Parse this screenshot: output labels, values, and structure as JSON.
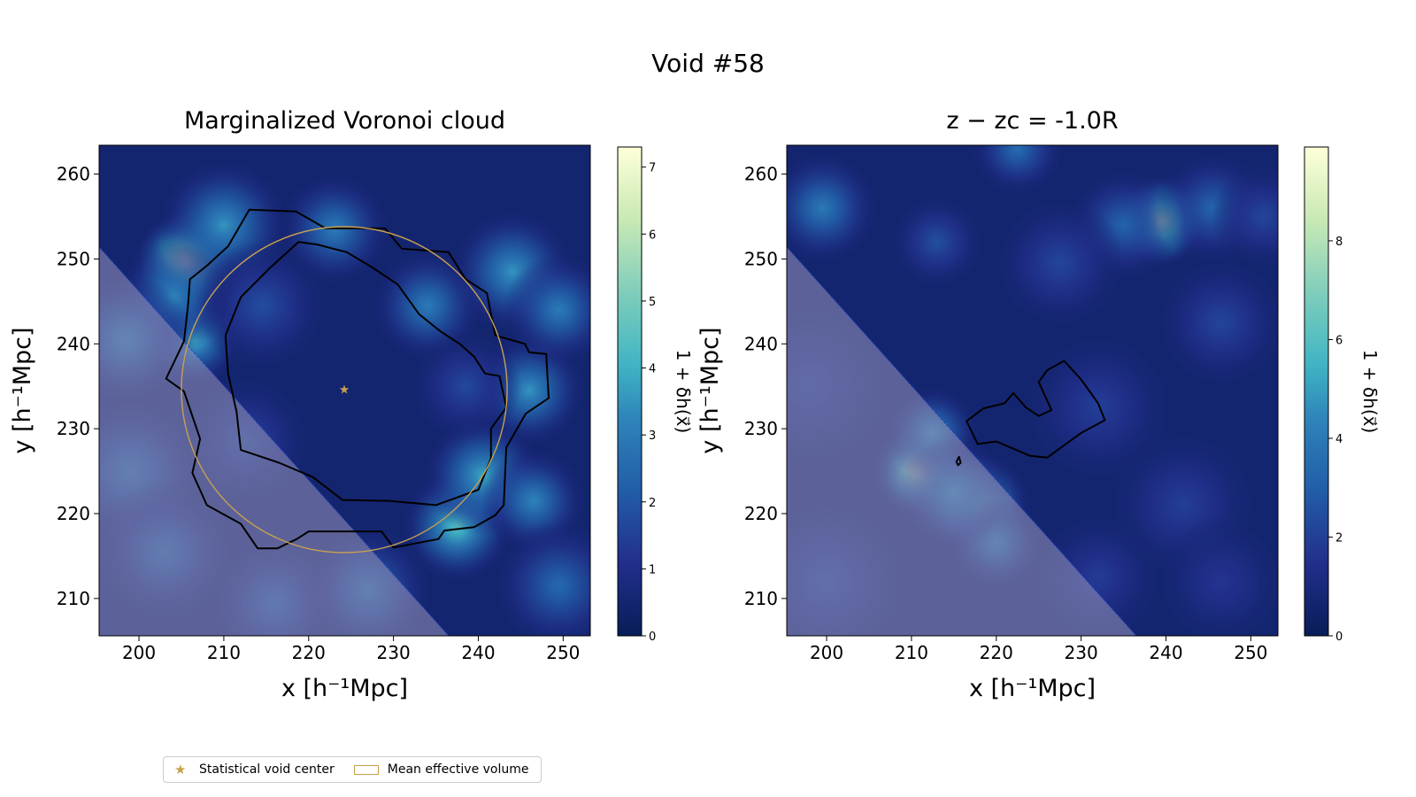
{
  "figure_title": "Void #58",
  "legend": {
    "center_label": "Statistical void center",
    "volume_label": "Mean effective volume"
  },
  "colors": {
    "dark": "#081d58",
    "mid": "#2c7fb8",
    "light": "#c7e9b4",
    "pale": "#ffffd9",
    "circle": "#c8a050",
    "mask": "#8c8cb4",
    "contour": "#000000"
  },
  "chart_data": [
    {
      "type": "heatmap",
      "title": "Marginalized Voronoi cloud",
      "xlabel": "x [h⁻¹Mpc]",
      "ylabel": "y [h⁻¹Mpc]",
      "xlim": [
        195.3,
        253.2
      ],
      "ylim": [
        205.6,
        263.4
      ],
      "xticks": [
        200,
        210,
        220,
        230,
        240,
        250
      ],
      "yticks": [
        210,
        220,
        230,
        240,
        250,
        260
      ],
      "colorbar": {
        "label": "1 + δh(x⃗)",
        "min": 0,
        "max": 7.3,
        "ticks": [
          0,
          1,
          2,
          3,
          4,
          5,
          6,
          7
        ]
      },
      "void_center": [
        224.2,
        234.6
      ],
      "effective_radius": 19.2,
      "blobs": [
        {
          "x": 205.5,
          "y": 249.5,
          "value": 6.8,
          "sigma": 2.8
        },
        {
          "x": 210.0,
          "y": 254.0,
          "value": 3.5,
          "sigma": 3.5
        },
        {
          "x": 206.5,
          "y": 240.5,
          "value": 4.0,
          "sigma": 2.5
        },
        {
          "x": 204.0,
          "y": 245.5,
          "value": 3.2,
          "sigma": 3.0
        },
        {
          "x": 237.5,
          "y": 218.5,
          "value": 4.5,
          "sigma": 3.0
        },
        {
          "x": 240.5,
          "y": 224.5,
          "value": 3.8,
          "sigma": 3.2
        },
        {
          "x": 246.5,
          "y": 221.5,
          "value": 3.2,
          "sigma": 2.8
        },
        {
          "x": 246.0,
          "y": 234.5,
          "value": 3.5,
          "sigma": 3.0
        },
        {
          "x": 244.0,
          "y": 248.5,
          "value": 3.5,
          "sigma": 3.3
        },
        {
          "x": 249.5,
          "y": 244.0,
          "value": 3.0,
          "sigma": 3.0
        },
        {
          "x": 234.0,
          "y": 244.5,
          "value": 3.0,
          "sigma": 3.0
        },
        {
          "x": 223.0,
          "y": 253.5,
          "value": 3.0,
          "sigma": 3.0
        },
        {
          "x": 198.5,
          "y": 240.5,
          "value": 3.0,
          "sigma": 3.5
        },
        {
          "x": 199.0,
          "y": 225.0,
          "value": 2.6,
          "sigma": 4.0
        },
        {
          "x": 203.0,
          "y": 215.5,
          "value": 2.4,
          "sigma": 3.8
        },
        {
          "x": 216.0,
          "y": 209.5,
          "value": 2.2,
          "sigma": 3.5
        },
        {
          "x": 227.0,
          "y": 211.0,
          "value": 2.6,
          "sigma": 3.5
        },
        {
          "x": 249.5,
          "y": 211.5,
          "value": 2.5,
          "sigma": 3.5
        },
        {
          "x": 214.5,
          "y": 244.5,
          "value": 1.8,
          "sigma": 3.5
        },
        {
          "x": 212.5,
          "y": 228.5,
          "value": 1.7,
          "sigma": 3.5
        },
        {
          "x": 238.5,
          "y": 235.0,
          "value": 1.7,
          "sigma": 3.0
        }
      ],
      "contours": [
        [
          [
            213.0,
            255.8
          ],
          [
            218.5,
            255.6
          ],
          [
            222.0,
            253.6
          ],
          [
            229.0,
            253.6
          ],
          [
            231.0,
            251.2
          ],
          [
            236.5,
            250.8
          ],
          [
            238.5,
            247.6
          ],
          [
            241.0,
            246.0
          ],
          [
            242.0,
            241.0
          ],
          [
            245.5,
            240.0
          ],
          [
            246.0,
            239.0
          ],
          [
            248.0,
            238.8
          ],
          [
            248.3,
            233.6
          ],
          [
            245.6,
            231.8
          ],
          [
            243.3,
            227.8
          ],
          [
            243.0,
            221.0
          ],
          [
            242.0,
            219.8
          ],
          [
            239.5,
            218.4
          ],
          [
            236.0,
            218.0
          ],
          [
            235.3,
            217.0
          ],
          [
            230.0,
            216.0
          ],
          [
            228.6,
            217.9
          ],
          [
            224.0,
            217.9
          ],
          [
            220.0,
            217.9
          ],
          [
            218.6,
            217.0
          ],
          [
            216.3,
            215.9
          ],
          [
            214.0,
            215.9
          ],
          [
            212.0,
            218.8
          ],
          [
            208.0,
            221.0
          ],
          [
            206.3,
            224.8
          ],
          [
            207.2,
            228.8
          ],
          [
            205.3,
            234.4
          ],
          [
            203.2,
            235.9
          ],
          [
            205.3,
            240.3
          ],
          [
            205.8,
            244.7
          ],
          [
            206.0,
            247.6
          ],
          [
            208.0,
            249.2
          ],
          [
            210.5,
            251.5
          ],
          [
            213.0,
            255.8
          ]
        ],
        [
          [
            218.8,
            252.0
          ],
          [
            221.0,
            251.7
          ],
          [
            224.5,
            250.8
          ],
          [
            227.5,
            249.0
          ],
          [
            230.5,
            247.0
          ],
          [
            233.0,
            243.5
          ],
          [
            235.5,
            241.5
          ],
          [
            237.8,
            240.0
          ],
          [
            239.5,
            238.5
          ],
          [
            240.8,
            236.5
          ],
          [
            242.5,
            236.2
          ],
          [
            243.3,
            232.5
          ],
          [
            241.5,
            230.0
          ],
          [
            241.5,
            226.5
          ],
          [
            240.0,
            222.8
          ],
          [
            235.0,
            221.0
          ],
          [
            229.5,
            221.5
          ],
          [
            224.0,
            221.6
          ],
          [
            220.5,
            224.3
          ],
          [
            216.5,
            226.0
          ],
          [
            212.0,
            227.5
          ],
          [
            211.5,
            232.0
          ],
          [
            210.5,
            236.5
          ],
          [
            210.2,
            241.0
          ],
          [
            212.0,
            245.5
          ],
          [
            215.5,
            249.0
          ],
          [
            218.8,
            252.0
          ]
        ]
      ]
    },
    {
      "type": "heatmap",
      "title": "z − zc = -1.0R",
      "xlabel": "x [h⁻¹Mpc]",
      "ylabel": "y [h⁻¹Mpc]",
      "xlim": [
        195.3,
        253.2
      ],
      "ylim": [
        205.6,
        263.4
      ],
      "xticks": [
        200,
        210,
        220,
        230,
        240,
        250
      ],
      "yticks": [
        210,
        220,
        230,
        240,
        250,
        260
      ],
      "colorbar": {
        "label": "1 + δh(x⃗)",
        "min": 0,
        "max": 9.9,
        "ticks": [
          0,
          2,
          4,
          6,
          8
        ]
      },
      "blobs": [
        {
          "x": 211.0,
          "y": 225.0,
          "value": 9.0,
          "sigma": 2.5
        },
        {
          "x": 218.0,
          "y": 221.0,
          "value": 6.0,
          "sigma": 2.8
        },
        {
          "x": 212.5,
          "y": 229.5,
          "value": 4.5,
          "sigma": 2.5
        },
        {
          "x": 220.0,
          "y": 216.5,
          "value": 4.0,
          "sigma": 2.5
        },
        {
          "x": 215.0,
          "y": 222.5,
          "value": 4.5,
          "sigma": 3.0
        },
        {
          "x": 239.5,
          "y": 254.5,
          "value": 8.0,
          "sigma": 2.5
        },
        {
          "x": 235.0,
          "y": 254.0,
          "value": 3.2,
          "sigma": 3.0
        },
        {
          "x": 245.5,
          "y": 256.0,
          "value": 3.2,
          "sigma": 3.0
        },
        {
          "x": 251.5,
          "y": 255.0,
          "value": 2.2,
          "sigma": 2.8
        },
        {
          "x": 199.5,
          "y": 256.0,
          "value": 4.0,
          "sigma": 3.0
        },
        {
          "x": 222.5,
          "y": 263.0,
          "value": 3.5,
          "sigma": 2.5
        },
        {
          "x": 213.0,
          "y": 252.0,
          "value": 2.5,
          "sigma": 2.5
        },
        {
          "x": 227.5,
          "y": 249.5,
          "value": 2.2,
          "sigma": 3.5
        },
        {
          "x": 246.5,
          "y": 242.5,
          "value": 2.2,
          "sigma": 3.5
        },
        {
          "x": 232.0,
          "y": 232.5,
          "value": 2.0,
          "sigma": 4.0
        },
        {
          "x": 242.0,
          "y": 221.0,
          "value": 2.0,
          "sigma": 4.0
        },
        {
          "x": 232.0,
          "y": 212.5,
          "value": 1.9,
          "sigma": 3.5
        },
        {
          "x": 246.5,
          "y": 212.0,
          "value": 1.7,
          "sigma": 3.5
        },
        {
          "x": 200.0,
          "y": 212.0,
          "value": 2.2,
          "sigma": 4.5
        },
        {
          "x": 198.0,
          "y": 235.0,
          "value": 1.9,
          "sigma": 4.5
        }
      ],
      "contours": [
        [
          [
            216.5,
            230.9
          ],
          [
            218.5,
            232.4
          ],
          [
            221.0,
            233.0
          ],
          [
            222.0,
            234.2
          ],
          [
            223.5,
            232.5
          ],
          [
            225.0,
            231.5
          ],
          [
            226.5,
            232.2
          ],
          [
            225.0,
            235.5
          ],
          [
            226.0,
            236.9
          ],
          [
            228.0,
            238.0
          ],
          [
            230.0,
            235.8
          ],
          [
            232.0,
            233.0
          ],
          [
            232.8,
            231.0
          ],
          [
            230.0,
            229.5
          ],
          [
            226.0,
            226.6
          ],
          [
            224.0,
            226.8
          ],
          [
            220.0,
            228.5
          ],
          [
            217.8,
            228.2
          ],
          [
            216.5,
            230.9
          ]
        ],
        [
          [
            215.6,
            226.7
          ],
          [
            215.8,
            226.0
          ],
          [
            215.5,
            225.7
          ],
          [
            215.3,
            226.1
          ],
          [
            215.6,
            226.7
          ]
        ]
      ]
    }
  ]
}
